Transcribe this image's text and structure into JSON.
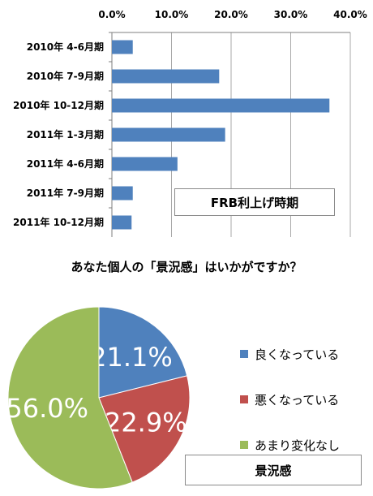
{
  "chart_data": [
    {
      "type": "bar",
      "orientation": "horizontal",
      "categories": [
        "2010年 4-6月期",
        "2010年 7-9月期",
        "2010年 10-12月期",
        "2011年 1-3月期",
        "2011年 4-6月期",
        "2011年 7-9月期",
        "2011年 10-12月期"
      ],
      "values": [
        3.5,
        18.0,
        36.5,
        19.0,
        11.0,
        3.5,
        3.3
      ],
      "xlim": [
        0,
        40
      ],
      "xticks": [
        "0.0%",
        "10.0%",
        "20.0%",
        "30.0%",
        "40.0%"
      ],
      "grid": true,
      "bar_color": "#4f81bd",
      "box_label": "FRB利上げ時期"
    },
    {
      "type": "pie",
      "title": "あなた個人の「景況感」はいかがですか？",
      "slices": [
        {
          "label": "良くなっている",
          "value": 21.1,
          "display": "21.1%",
          "color": "#4f81bd"
        },
        {
          "label": "悪くなっている",
          "value": 22.9,
          "display": "22.9%",
          "color": "#c0504d"
        },
        {
          "label": "あまり変化なし",
          "value": 56.0,
          "display": "56.0%",
          "color": "#9bbb59"
        }
      ],
      "box_label": "景況感"
    }
  ]
}
